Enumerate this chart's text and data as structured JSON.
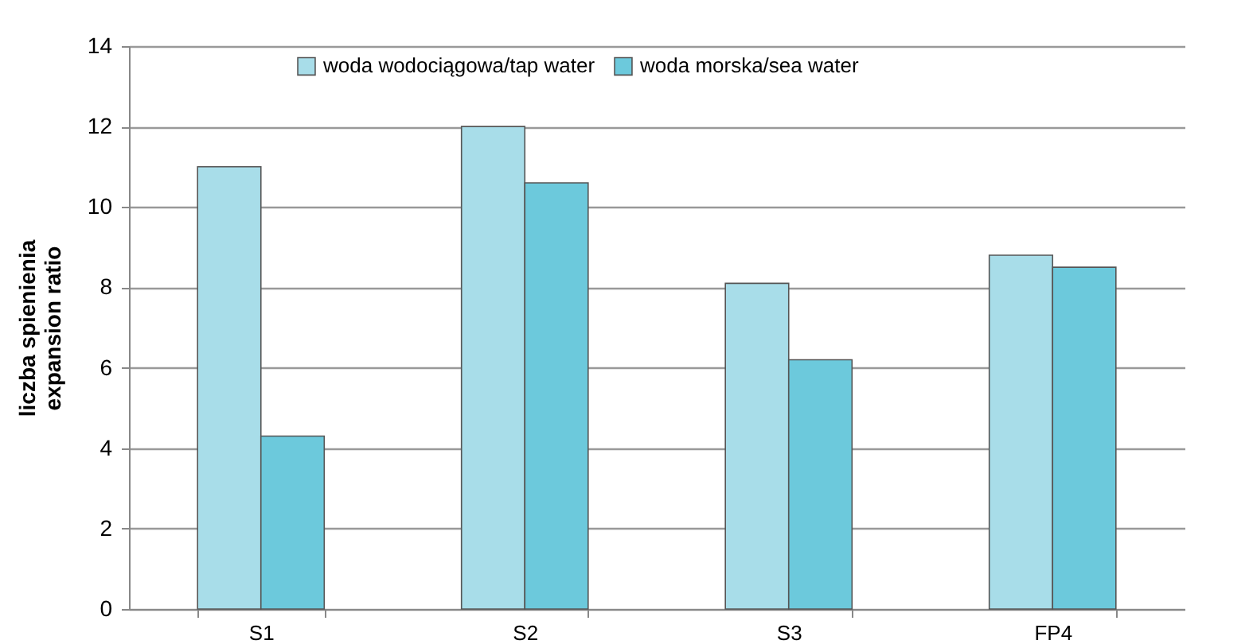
{
  "chart_data": {
    "type": "bar",
    "ylabel": "liczba spienienia\nexpansion ratio",
    "categories": [
      "S1",
      "S2",
      "S3",
      "FP4"
    ],
    "series": [
      {
        "name": "woda wodociągowa/tap water",
        "color": "#a8dde9",
        "values": [
          11,
          12,
          8.1,
          8.8
        ]
      },
      {
        "name": "woda morska/sea water",
        "color": "#6cc9dc",
        "values": [
          4.3,
          10.6,
          6.2,
          8.5
        ]
      }
    ],
    "ylim": [
      0,
      14
    ],
    "yticks": [
      0,
      2,
      4,
      6,
      8,
      10,
      12,
      14
    ],
    "grid": "y",
    "legend": "top"
  }
}
